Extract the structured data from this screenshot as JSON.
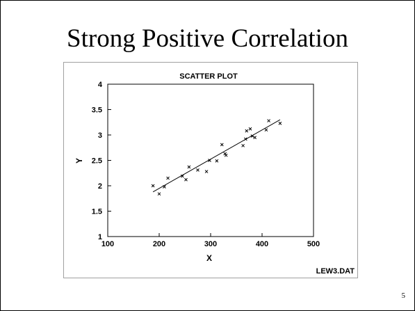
{
  "slide": {
    "title": "Strong Positive Correlation",
    "page_number": "5"
  },
  "colors": {
    "axes": "#000000",
    "points": "#000000",
    "fit_line": "#000000",
    "frame": "#a0a0a0"
  },
  "chart_data": {
    "type": "scatter",
    "title": "SCATTER PLOT",
    "xlabel": "X",
    "ylabel": "Y",
    "xlim": [
      100,
      500
    ],
    "ylim": [
      1,
      4
    ],
    "xticks": [
      100,
      200,
      300,
      400,
      500
    ],
    "yticks": [
      1,
      1.5,
      2,
      2.5,
      3,
      3.5,
      4
    ],
    "grid": false,
    "legend": "none",
    "marker": "x",
    "annotation": "LEW3.DAT",
    "points": [
      {
        "x": 188,
        "y": 2.0
      },
      {
        "x": 200,
        "y": 1.84
      },
      {
        "x": 210,
        "y": 1.98
      },
      {
        "x": 217,
        "y": 2.15
      },
      {
        "x": 245,
        "y": 2.19
      },
      {
        "x": 252,
        "y": 2.12
      },
      {
        "x": 258,
        "y": 2.37
      },
      {
        "x": 275,
        "y": 2.31
      },
      {
        "x": 292,
        "y": 2.28
      },
      {
        "x": 298,
        "y": 2.5
      },
      {
        "x": 312,
        "y": 2.49
      },
      {
        "x": 322,
        "y": 2.81
      },
      {
        "x": 328,
        "y": 2.63
      },
      {
        "x": 330,
        "y": 2.6
      },
      {
        "x": 363,
        "y": 2.79
      },
      {
        "x": 368,
        "y": 2.92
      },
      {
        "x": 370,
        "y": 3.08
      },
      {
        "x": 377,
        "y": 3.12
      },
      {
        "x": 381,
        "y": 2.98
      },
      {
        "x": 386,
        "y": 2.95
      },
      {
        "x": 408,
        "y": 3.1
      },
      {
        "x": 413,
        "y": 3.28
      },
      {
        "x": 435,
        "y": 3.23
      }
    ],
    "fit_line": {
      "x": [
        188,
        435
      ],
      "y": [
        1.88,
        3.3
      ]
    }
  }
}
